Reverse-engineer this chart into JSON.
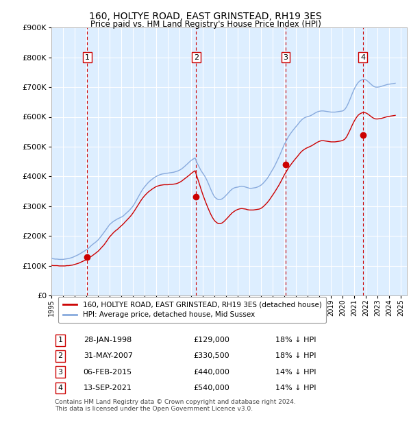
{
  "title": "160, HOLTYE ROAD, EAST GRINSTEAD, RH19 3ES",
  "subtitle": "Price paid vs. HM Land Registry's House Price Index (HPI)",
  "ylim": [
    0,
    900000
  ],
  "yticks": [
    0,
    100000,
    200000,
    300000,
    400000,
    500000,
    600000,
    700000,
    800000,
    900000
  ],
  "ytick_labels": [
    "£0",
    "£100K",
    "£200K",
    "£300K",
    "£400K",
    "£500K",
    "£600K",
    "£700K",
    "£800K",
    "£900K"
  ],
  "background_color": "#ddeeff",
  "sale_dates_dec": [
    1998.08,
    2007.42,
    2015.1,
    2021.71
  ],
  "sale_prices": [
    129000,
    330500,
    440000,
    540000
  ],
  "sale_labels": [
    "1",
    "2",
    "3",
    "4"
  ],
  "sale_color": "#cc0000",
  "hpi_color": "#88aadd",
  "legend_label_red": "160, HOLTYE ROAD, EAST GRINSTEAD, RH19 3ES (detached house)",
  "legend_label_blue": "HPI: Average price, detached house, Mid Sussex",
  "table_data": [
    [
      "1",
      "28-JAN-1998",
      "£129,000",
      "18% ↓ HPI"
    ],
    [
      "2",
      "31-MAY-2007",
      "£330,500",
      "18% ↓ HPI"
    ],
    [
      "3",
      "06-FEB-2015",
      "£440,000",
      "14% ↓ HPI"
    ],
    [
      "4",
      "13-SEP-2021",
      "£540,000",
      "14% ↓ HPI"
    ]
  ],
  "footer": "Contains HM Land Registry data © Crown copyright and database right 2024.\nThis data is licensed under the Open Government Licence v3.0.",
  "hpi_x": [
    1995.0,
    1995.17,
    1995.33,
    1995.5,
    1995.67,
    1995.83,
    1996.0,
    1996.17,
    1996.33,
    1996.5,
    1996.67,
    1996.83,
    1997.0,
    1997.17,
    1997.33,
    1997.5,
    1997.67,
    1997.83,
    1998.0,
    1998.17,
    1998.33,
    1998.5,
    1998.67,
    1998.83,
    1999.0,
    1999.17,
    1999.33,
    1999.5,
    1999.67,
    1999.83,
    2000.0,
    2000.17,
    2000.33,
    2000.5,
    2000.67,
    2000.83,
    2001.0,
    2001.17,
    2001.33,
    2001.5,
    2001.67,
    2001.83,
    2002.0,
    2002.17,
    2002.33,
    2002.5,
    2002.67,
    2002.83,
    2003.0,
    2003.17,
    2003.33,
    2003.5,
    2003.67,
    2003.83,
    2004.0,
    2004.17,
    2004.33,
    2004.5,
    2004.67,
    2004.83,
    2005.0,
    2005.17,
    2005.33,
    2005.5,
    2005.67,
    2005.83,
    2006.0,
    2006.17,
    2006.33,
    2006.5,
    2006.67,
    2006.83,
    2007.0,
    2007.17,
    2007.33,
    2007.5,
    2007.67,
    2007.83,
    2008.0,
    2008.17,
    2008.33,
    2008.5,
    2008.67,
    2008.83,
    2009.0,
    2009.17,
    2009.33,
    2009.5,
    2009.67,
    2009.83,
    2010.0,
    2010.17,
    2010.33,
    2010.5,
    2010.67,
    2010.83,
    2011.0,
    2011.17,
    2011.33,
    2011.5,
    2011.67,
    2011.83,
    2012.0,
    2012.17,
    2012.33,
    2012.5,
    2012.67,
    2012.83,
    2013.0,
    2013.17,
    2013.33,
    2013.5,
    2013.67,
    2013.83,
    2014.0,
    2014.17,
    2014.33,
    2014.5,
    2014.67,
    2014.83,
    2015.0,
    2015.17,
    2015.33,
    2015.5,
    2015.67,
    2015.83,
    2016.0,
    2016.17,
    2016.33,
    2016.5,
    2016.67,
    2016.83,
    2017.0,
    2017.17,
    2017.33,
    2017.5,
    2017.67,
    2017.83,
    2018.0,
    2018.17,
    2018.33,
    2018.5,
    2018.67,
    2018.83,
    2019.0,
    2019.17,
    2019.33,
    2019.5,
    2019.67,
    2019.83,
    2020.0,
    2020.17,
    2020.33,
    2020.5,
    2020.67,
    2020.83,
    2021.0,
    2021.17,
    2021.33,
    2021.5,
    2021.67,
    2021.83,
    2022.0,
    2022.17,
    2022.33,
    2022.5,
    2022.67,
    2022.83,
    2023.0,
    2023.17,
    2023.33,
    2023.5,
    2023.67,
    2023.83,
    2024.0,
    2024.17,
    2024.33,
    2024.5
  ],
  "hpi_y": [
    125000,
    123000,
    122000,
    122000,
    121000,
    121000,
    121000,
    122000,
    123000,
    124000,
    126000,
    128000,
    131000,
    134000,
    137000,
    141000,
    145000,
    149000,
    153000,
    158000,
    164000,
    170000,
    175000,
    180000,
    186000,
    194000,
    202000,
    211000,
    220000,
    229000,
    238000,
    244000,
    249000,
    253000,
    257000,
    260000,
    263000,
    267000,
    273000,
    279000,
    285000,
    292000,
    300000,
    311000,
    322000,
    334000,
    346000,
    356000,
    365000,
    373000,
    380000,
    386000,
    391000,
    396000,
    400000,
    403000,
    406000,
    408000,
    409000,
    410000,
    411000,
    412000,
    413000,
    414000,
    416000,
    418000,
    421000,
    425000,
    430000,
    436000,
    442000,
    448000,
    454000,
    458000,
    462000,
    445000,
    432000,
    420000,
    410000,
    400000,
    388000,
    373000,
    357000,
    343000,
    331000,
    325000,
    322000,
    322000,
    325000,
    330000,
    337000,
    344000,
    351000,
    357000,
    361000,
    363000,
    364000,
    366000,
    367000,
    366000,
    364000,
    362000,
    360000,
    360000,
    361000,
    362000,
    364000,
    367000,
    371000,
    377000,
    384000,
    392000,
    402000,
    413000,
    424000,
    436000,
    449000,
    463000,
    478000,
    493000,
    509000,
    521000,
    533000,
    543000,
    552000,
    560000,
    568000,
    576000,
    584000,
    591000,
    596000,
    599000,
    601000,
    603000,
    606000,
    610000,
    614000,
    617000,
    619000,
    620000,
    620000,
    619000,
    618000,
    617000,
    616000,
    616000,
    616000,
    617000,
    618000,
    619000,
    620000,
    625000,
    634000,
    648000,
    664000,
    680000,
    695000,
    707000,
    716000,
    722000,
    725000,
    726000,
    724000,
    719000,
    713000,
    707000,
    702000,
    700000,
    700000,
    701000,
    703000,
    705000,
    707000,
    709000,
    710000,
    711000,
    712000,
    713000
  ],
  "red_y": [
    101000,
    100000,
    100000,
    100000,
    99000,
    99000,
    99000,
    99000,
    100000,
    100000,
    101000,
    102000,
    104000,
    106000,
    108000,
    111000,
    114000,
    117000,
    120000,
    124000,
    129000,
    133000,
    138000,
    143000,
    148000,
    155000,
    162000,
    169000,
    178000,
    187000,
    197000,
    204000,
    211000,
    217000,
    222000,
    228000,
    234000,
    240000,
    247000,
    254000,
    261000,
    268000,
    277000,
    287000,
    297000,
    308000,
    318000,
    327000,
    335000,
    342000,
    348000,
    353000,
    358000,
    362000,
    366000,
    368000,
    370000,
    371000,
    372000,
    372000,
    372000,
    373000,
    373000,
    374000,
    375000,
    377000,
    380000,
    384000,
    389000,
    394000,
    399000,
    404000,
    410000,
    415000,
    419000,
    398000,
    378000,
    358000,
    338000,
    320000,
    304000,
    288000,
    273000,
    261000,
    251000,
    245000,
    241000,
    241000,
    244000,
    249000,
    256000,
    263000,
    270000,
    277000,
    282000,
    286000,
    289000,
    291000,
    292000,
    291000,
    290000,
    288000,
    287000,
    287000,
    287000,
    288000,
    289000,
    290000,
    293000,
    298000,
    304000,
    311000,
    319000,
    328000,
    338000,
    348000,
    358000,
    369000,
    381000,
    393000,
    406000,
    417000,
    428000,
    437000,
    446000,
    454000,
    462000,
    470000,
    478000,
    485000,
    490000,
    494000,
    497000,
    500000,
    503000,
    507000,
    511000,
    515000,
    518000,
    520000,
    520000,
    519000,
    518000,
    517000,
    516000,
    516000,
    516000,
    517000,
    518000,
    519000,
    521000,
    525000,
    533000,
    546000,
    560000,
    574000,
    587000,
    598000,
    606000,
    611000,
    614000,
    615000,
    613000,
    609000,
    604000,
    599000,
    595000,
    593000,
    593000,
    594000,
    595000,
    597000,
    599000,
    601000,
    602000,
    603000,
    604000,
    605000
  ]
}
